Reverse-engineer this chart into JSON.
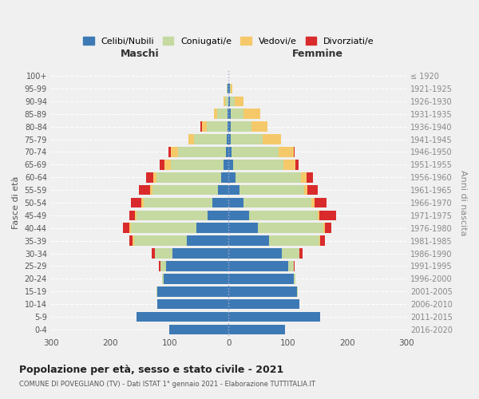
{
  "age_groups": [
    "0-4",
    "5-9",
    "10-14",
    "15-19",
    "20-24",
    "25-29",
    "30-34",
    "35-39",
    "40-44",
    "45-49",
    "50-54",
    "55-59",
    "60-64",
    "65-69",
    "70-74",
    "75-79",
    "80-84",
    "85-89",
    "90-94",
    "95-99",
    "100+"
  ],
  "birth_years": [
    "2016-2020",
    "2011-2015",
    "2006-2010",
    "2001-2005",
    "1996-2000",
    "1991-1995",
    "1986-1990",
    "1981-1985",
    "1976-1980",
    "1971-1975",
    "1966-1970",
    "1961-1965",
    "1956-1960",
    "1951-1955",
    "1946-1950",
    "1941-1945",
    "1936-1940",
    "1931-1935",
    "1926-1930",
    "1921-1925",
    "≤ 1920"
  ],
  "males": {
    "celibi": [
      100,
      155,
      120,
      120,
      110,
      105,
      95,
      70,
      55,
      35,
      28,
      18,
      12,
      8,
      5,
      3,
      2,
      2,
      1,
      2,
      0
    ],
    "coniugati": [
      0,
      0,
      0,
      2,
      3,
      10,
      30,
      90,
      110,
      120,
      115,
      110,
      110,
      90,
      80,
      55,
      35,
      18,
      5,
      1,
      0
    ],
    "vedovi": [
      0,
      0,
      0,
      0,
      0,
      0,
      0,
      2,
      2,
      3,
      4,
      5,
      5,
      10,
      12,
      10,
      8,
      5,
      2,
      0,
      0
    ],
    "divorziati": [
      0,
      0,
      0,
      0,
      0,
      3,
      5,
      5,
      12,
      10,
      18,
      18,
      12,
      8,
      5,
      0,
      2,
      0,
      0,
      0,
      0
    ]
  },
  "females": {
    "nubili": [
      95,
      155,
      120,
      115,
      110,
      100,
      90,
      68,
      50,
      35,
      25,
      18,
      12,
      8,
      5,
      3,
      3,
      3,
      2,
      2,
      0
    ],
    "coniugate": [
      0,
      0,
      0,
      2,
      3,
      10,
      30,
      85,
      110,
      115,
      115,
      110,
      110,
      85,
      80,
      55,
      35,
      22,
      8,
      2,
      0
    ],
    "vedove": [
      0,
      0,
      0,
      0,
      0,
      0,
      0,
      2,
      2,
      3,
      5,
      5,
      10,
      20,
      25,
      30,
      28,
      28,
      15,
      2,
      0
    ],
    "divorziate": [
      0,
      0,
      0,
      0,
      0,
      2,
      5,
      8,
      12,
      28,
      20,
      18,
      10,
      5,
      2,
      0,
      0,
      0,
      0,
      0,
      0
    ]
  },
  "colors": {
    "celibi": "#3d7ab5",
    "coniugati": "#c5d9a0",
    "vedovi": "#f5c96a",
    "divorziati": "#d92b2b"
  },
  "title": "Popolazione per età, sesso e stato civile - 2021",
  "subtitle": "COMUNE DI POVEGLIANO (TV) - Dati ISTAT 1° gennaio 2021 - Elaborazione TUTTITALIA.IT",
  "xlabel_left": "Maschi",
  "xlabel_right": "Femmine",
  "ylabel_left": "Fasce di età",
  "ylabel_right": "Anni di nascita",
  "xlim": 300,
  "legend_labels": [
    "Celibi/Nubili",
    "Coniugati/e",
    "Vedovi/e",
    "Divorziati/e"
  ],
  "bg_color": "#f0f0f0"
}
